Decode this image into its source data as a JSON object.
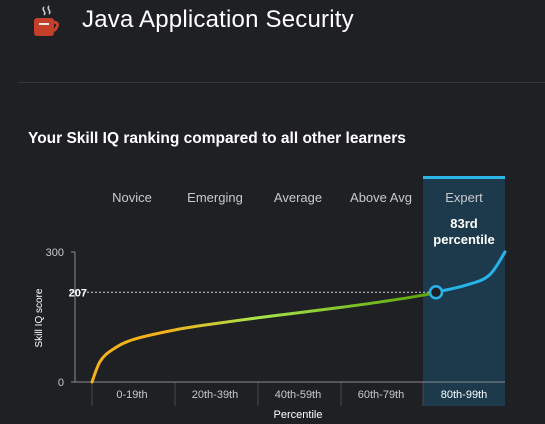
{
  "app": {
    "title": "Java Application Security",
    "icon": "coffee-cup-icon"
  },
  "section": {
    "title": "Your Skill IQ ranking compared to all other learners"
  },
  "chart_data": {
    "type": "line",
    "categories": [
      "Novice",
      "Emerging",
      "Average",
      "Above Avg",
      "Expert"
    ],
    "x_ticks": [
      "0-19th",
      "20th-39th",
      "40th-59th",
      "60th-79th",
      "80th-99th"
    ],
    "xlabel": "Percentile",
    "ylabel": "Skill IQ score",
    "y_ticks": [
      "300",
      "0"
    ],
    "ylim": [
      0,
      300
    ],
    "xlim": [
      0,
      100
    ],
    "highlight_category": "Expert",
    "marker": {
      "percentile": 83,
      "score": 207,
      "score_label": "207",
      "label_line1": "83rd",
      "label_line2": "percentile"
    },
    "curve": [
      {
        "x": 0,
        "y": 0
      },
      {
        "x": 2,
        "y": 48
      },
      {
        "x": 5,
        "y": 75
      },
      {
        "x": 10,
        "y": 98
      },
      {
        "x": 20,
        "y": 120
      },
      {
        "x": 30,
        "y": 135
      },
      {
        "x": 40,
        "y": 148
      },
      {
        "x": 50,
        "y": 160
      },
      {
        "x": 60,
        "y": 172
      },
      {
        "x": 70,
        "y": 185
      },
      {
        "x": 80,
        "y": 200
      },
      {
        "x": 83,
        "y": 207
      },
      {
        "x": 90,
        "y": 222
      },
      {
        "x": 96,
        "y": 245
      },
      {
        "x": 100,
        "y": 300
      }
    ],
    "colors": {
      "expert_band": "#1c3a4c",
      "expert_top": "#2bb6e8",
      "curve_low": "#f3b21b",
      "curve_mid": "#a8e34a",
      "curve_high": "#5fa80f",
      "curve_expert": "#28b3ea",
      "axis": "#8a8d92",
      "text_muted": "#c8cacd"
    }
  }
}
